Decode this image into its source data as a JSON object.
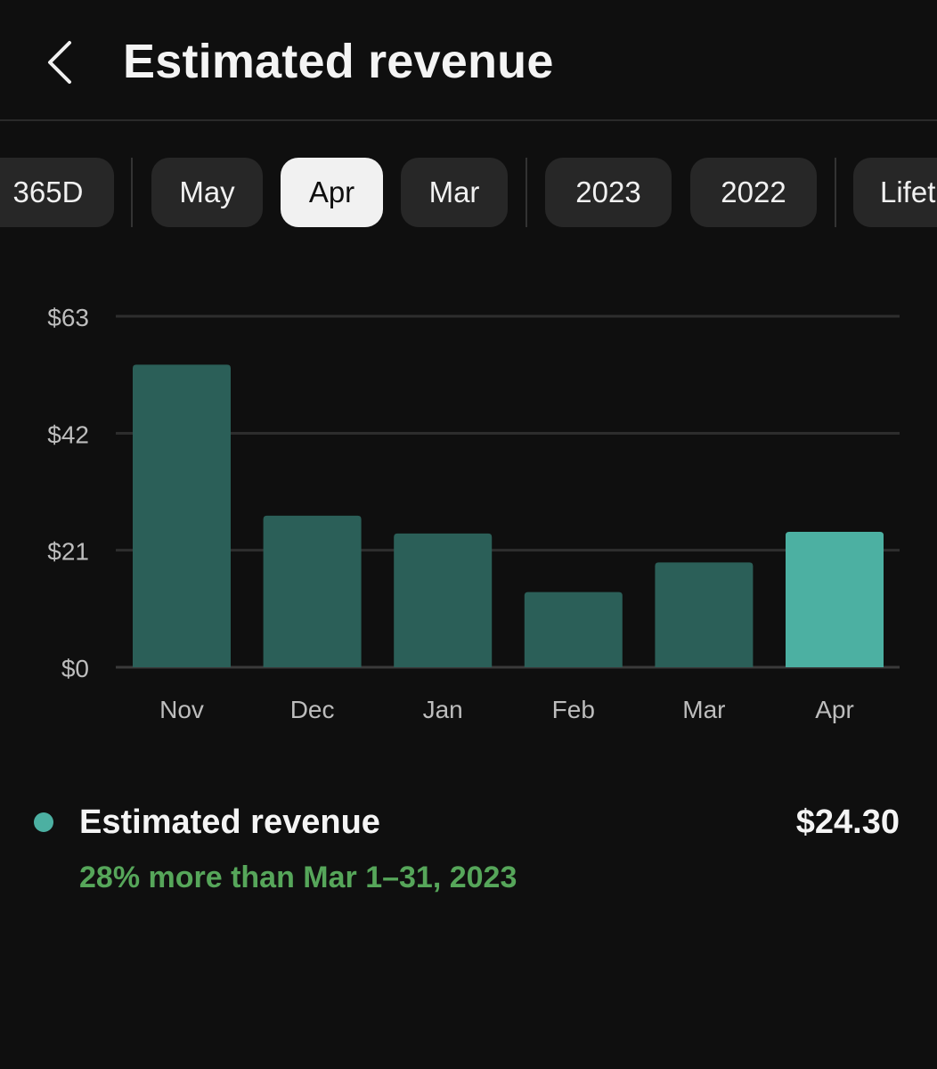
{
  "header": {
    "title": "Estimated revenue",
    "back_icon": "chevron-left-icon"
  },
  "periods": [
    "365D",
    "May",
    "Apr",
    "Mar",
    "2023",
    "2022",
    "Lifet"
  ],
  "selected_period": "Apr",
  "colors": {
    "bar": "#2b5f58",
    "bar_selected": "#4cb0a2",
    "positive": "#56a65a",
    "background": "#0f0f0f"
  },
  "chart_data": {
    "type": "bar",
    "categories": [
      "Nov",
      "Dec",
      "Jan",
      "Feb",
      "Mar",
      "Apr"
    ],
    "values": [
      54.3,
      27.2,
      24.0,
      13.5,
      18.8,
      24.3
    ],
    "highlighted": "Apr",
    "yticks": [
      "$0",
      "$21",
      "$42",
      "$63"
    ],
    "ylim": [
      0,
      63
    ],
    "grid": true
  },
  "summary": {
    "label": "Estimated revenue",
    "value": "$24.30",
    "comparison": "28% more than Mar 1–31, 2023"
  }
}
